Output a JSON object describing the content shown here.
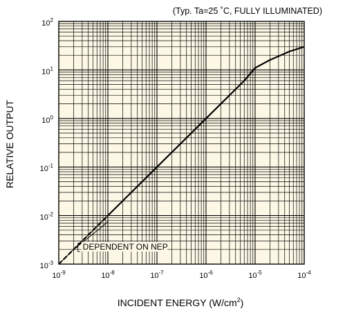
{
  "chart_data": {
    "type": "line",
    "title": "(Typ. Ta=25 ˚C, FULLY ILLUMINATED)",
    "xlabel_main": "INCIDENT ENERGY (W/cm",
    "xlabel_sup": "2",
    "xlabel_end": ")",
    "ylabel": "RELATIVE OUTPUT",
    "x_scale": "log",
    "y_scale": "log",
    "xlim": [
      1e-09,
      0.0001
    ],
    "ylim": [
      0.001,
      100
    ],
    "x_ticks": [
      {
        "value": 1e-09,
        "base": "10",
        "exp": "-9"
      },
      {
        "value": 1e-08,
        "base": "10",
        "exp": "-8"
      },
      {
        "value": 1e-07,
        "base": "10",
        "exp": "-7"
      },
      {
        "value": 1e-06,
        "base": "10",
        "exp": "-6"
      },
      {
        "value": 1e-05,
        "base": "10",
        "exp": "-5"
      },
      {
        "value": 0.0001,
        "base": "10",
        "exp": "-4"
      }
    ],
    "y_ticks": [
      {
        "value": 0.001,
        "base": "10",
        "exp": "-3"
      },
      {
        "value": 0.01,
        "base": "10",
        "exp": "-2"
      },
      {
        "value": 0.1,
        "base": "10",
        "exp": "-1"
      },
      {
        "value": 1,
        "base": "10",
        "exp": "0"
      },
      {
        "value": 10,
        "base": "10",
        "exp": "1"
      },
      {
        "value": 100,
        "base": "10",
        "exp": "2"
      }
    ],
    "grid": true,
    "plot_background": "#fdf8e6",
    "series": [
      {
        "style": "solid",
        "width": 2.2,
        "x": [
          1e-08,
          1e-07,
          1e-06,
          6e-06,
          1e-05,
          2e-05,
          5e-05,
          0.0001
        ],
        "y": [
          0.01,
          0.1,
          1,
          6,
          11,
          16,
          24,
          30
        ]
      },
      {
        "style": "dashed",
        "width": 2.2,
        "x": [
          1e-09,
          1e-08
        ],
        "y": [
          0.001,
          0.01
        ]
      },
      {
        "style": "solid",
        "width": 1.0,
        "x": [
          1e-09,
          1e-08
        ],
        "y": [
          0.001,
          0.01
        ]
      },
      {
        "style": "solid",
        "width": 1.0,
        "x": [
          1e-09,
          2e-09,
          4e-09,
          7e-09,
          1e-08
        ],
        "y": [
          0.001,
          0.002,
          0.0035,
          0.0055,
          0.0075
        ]
      }
    ],
    "annotation": {
      "text": "DEPENDENT ON NEP",
      "x": 2.3e-09,
      "y": 0.002
    }
  }
}
